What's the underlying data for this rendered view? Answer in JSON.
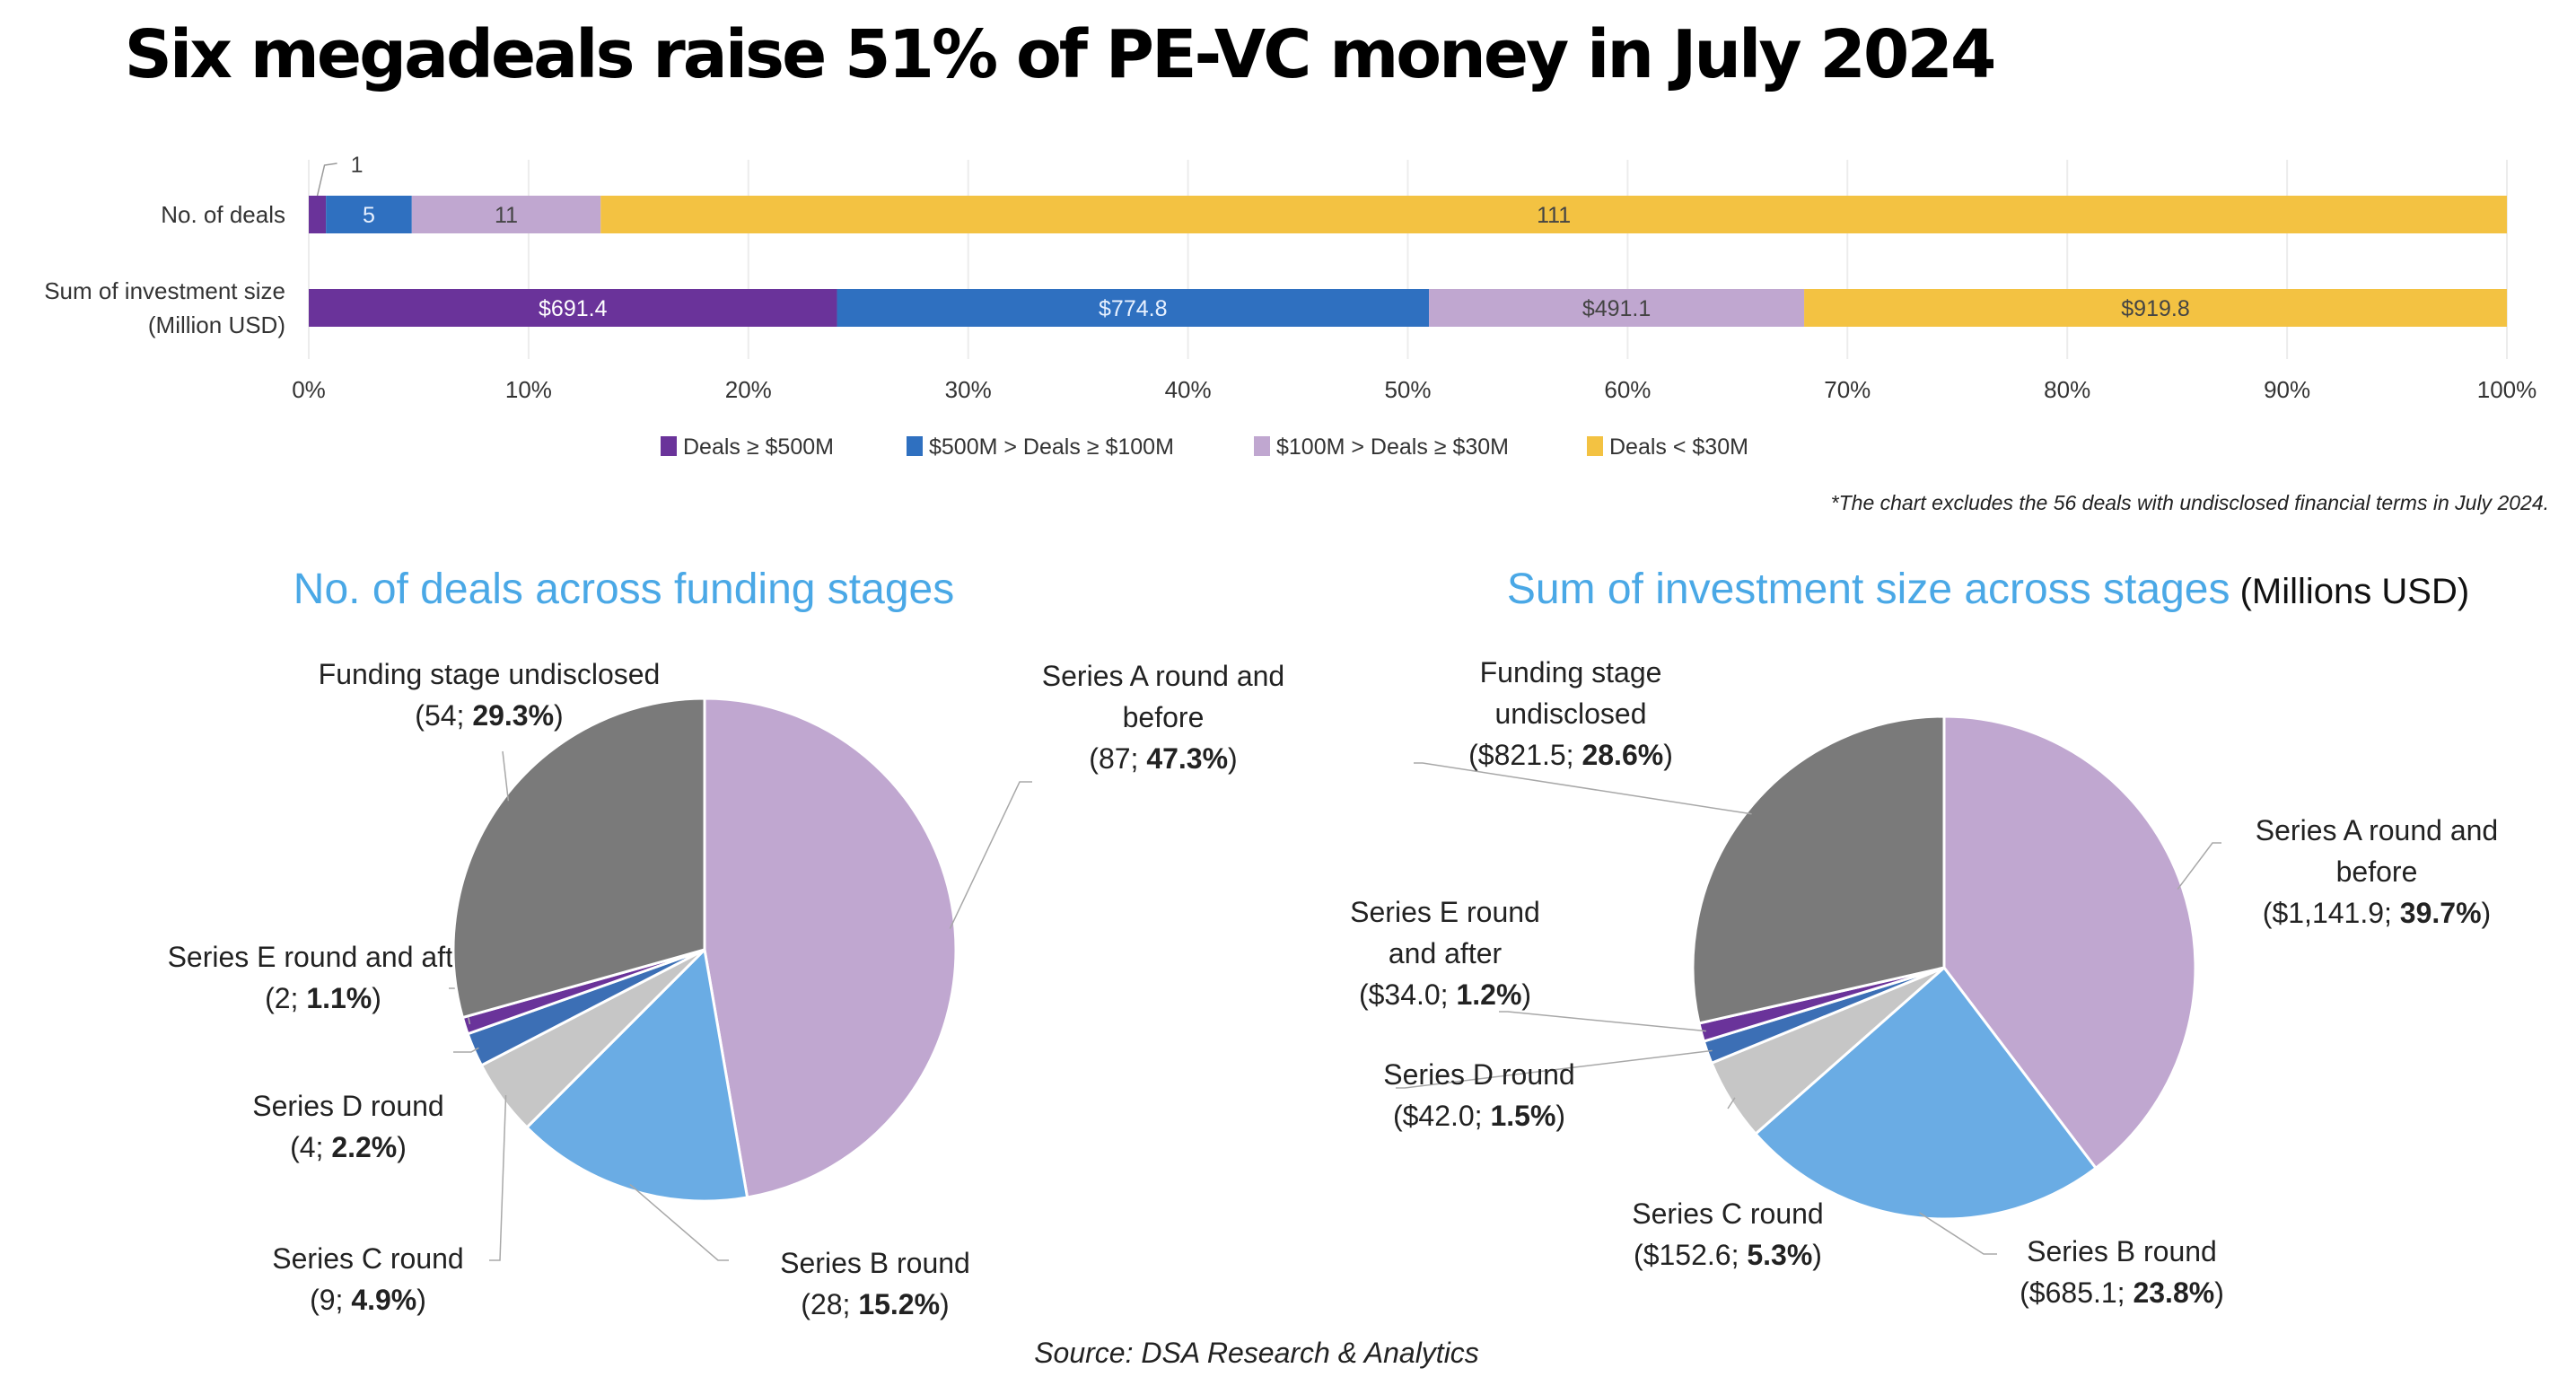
{
  "title": "Six megadeals raise 51% of PE-VC money in July 2024",
  "source": "Source: DSA Research & Analytics",
  "chart_data": [
    {
      "type": "bar",
      "orientation": "horizontal-stacked-100",
      "categories": [
        "No. of deals",
        "Sum of investment size (Million USD)"
      ],
      "category_lines": [
        [
          "No. of deals"
        ],
        [
          "Sum of investment size",
          "(Million USD)"
        ]
      ],
      "series": [
        {
          "name": "Deals ≥ $500M",
          "color": "#6a339a",
          "values": [
            1,
            691.4
          ],
          "labels": [
            "1",
            "$691.4"
          ]
        },
        {
          "name": "$500M > Deals ≥ $100M",
          "color": "#2f70c0",
          "values": [
            5,
            774.8
          ],
          "labels": [
            "5",
            "$774.8"
          ]
        },
        {
          "name": "$100M > Deals ≥ $30M",
          "color": "#c0a7d0",
          "values": [
            11,
            491.1
          ],
          "labels": [
            "11",
            "$491.1"
          ]
        },
        {
          "name": "Deals < $30M",
          "color": "#f3c242",
          "values": [
            111,
            919.8
          ],
          "labels": [
            "111",
            "$919.8"
          ]
        }
      ],
      "xlim": [
        0,
        100
      ],
      "xticks": [
        "0%",
        "10%",
        "20%",
        "30%",
        "40%",
        "50%",
        "60%",
        "70%",
        "80%",
        "90%",
        "100%"
      ],
      "grid": true,
      "legend": "bottom-center",
      "footnote": "*The chart excludes the 56 deals with undisclosed financial terms in July 2024."
    },
    {
      "type": "pie",
      "title": "No. of deals across funding stages",
      "title_suffix": "",
      "slices": [
        {
          "name": "Series A round and before",
          "lines": [
            "Series A round and",
            "before"
          ],
          "value": 87,
          "value_label": "87",
          "percent": "47.3%",
          "color": "#c0a7d0"
        },
        {
          "name": "Series B round",
          "lines": [
            "Series B round"
          ],
          "value": 28,
          "value_label": "28",
          "percent": "15.2%",
          "color": "#6aace4"
        },
        {
          "name": "Series C round",
          "lines": [
            "Series C round"
          ],
          "value": 9,
          "value_label": "9",
          "percent": "4.9%",
          "color": "#c6c6c6"
        },
        {
          "name": "Series D round",
          "lines": [
            "Series D round"
          ],
          "value": 4,
          "value_label": "4",
          "percent": "2.2%",
          "color": "#3c6fb5"
        },
        {
          "name": "Series E round and after",
          "lines": [
            "Series E round and after"
          ],
          "value": 2,
          "value_label": "2",
          "percent": "1.1%",
          "color": "#6a339a"
        },
        {
          "name": "Funding stage undisclosed",
          "lines": [
            "Funding stage undisclosed"
          ],
          "value": 54,
          "value_label": "54",
          "percent": "29.3%",
          "color": "#7a7a7a"
        }
      ]
    },
    {
      "type": "pie",
      "title": "Sum of investment size across stages",
      "title_suffix": "(Millions USD)",
      "slices": [
        {
          "name": "Series A round and before",
          "lines": [
            "Series A round and",
            "before"
          ],
          "value": 1141.9,
          "value_label": "$1,141.9",
          "percent": "39.7%",
          "color": "#c0a7d0"
        },
        {
          "name": "Series B round",
          "lines": [
            "Series B round"
          ],
          "value": 685.1,
          "value_label": "$685.1",
          "percent": "23.8%",
          "color": "#6aace4"
        },
        {
          "name": "Series C round",
          "lines": [
            "Series C round"
          ],
          "value": 152.6,
          "value_label": "$152.6",
          "percent": "5.3%",
          "color": "#c6c6c6"
        },
        {
          "name": "Series D round",
          "lines": [
            "Series D round"
          ],
          "value": 42.0,
          "value_label": "$42.0",
          "percent": "1.5%",
          "color": "#3c6fb5"
        },
        {
          "name": "Series E round and after",
          "lines": [
            "Series E round",
            "and after"
          ],
          "value": 34.0,
          "value_label": "$34.0",
          "percent": "1.2%",
          "color": "#6a339a"
        },
        {
          "name": "Funding stage undisclosed",
          "lines": [
            "Funding stage",
            "undisclosed"
          ],
          "value": 821.5,
          "value_label": "$821.5",
          "percent": "28.6%",
          "color": "#7a7a7a"
        }
      ]
    }
  ]
}
